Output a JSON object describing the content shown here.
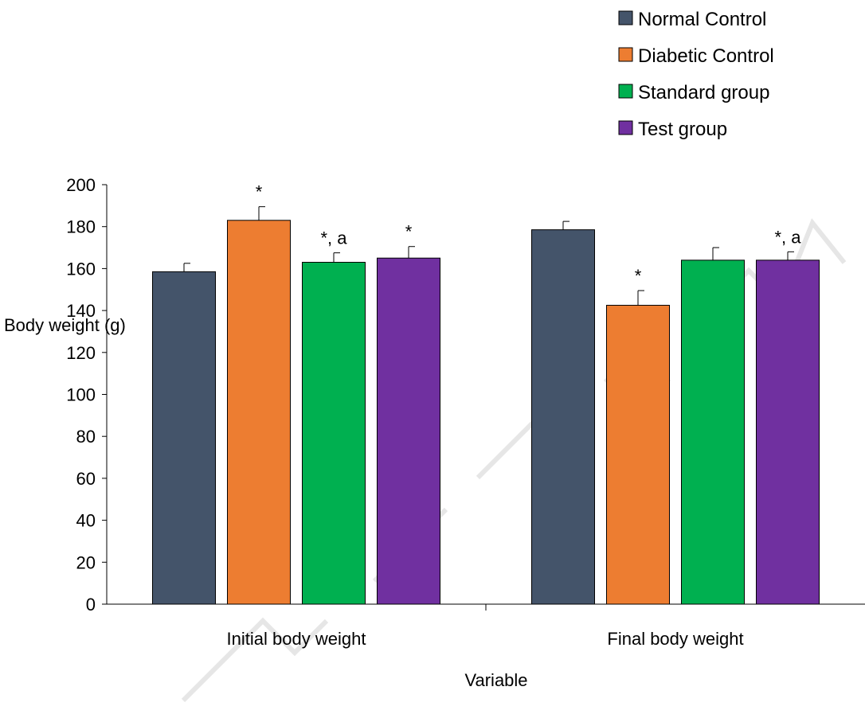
{
  "chart_data": {
    "type": "bar",
    "title": "",
    "xlabel": "Variable",
    "ylabel": "Body weight (g)",
    "ylim": [
      0,
      200
    ],
    "yticks": [
      0,
      20,
      40,
      60,
      80,
      100,
      120,
      140,
      160,
      180,
      200
    ],
    "categories": [
      "Initial body weight",
      "Final body weight"
    ],
    "legend_position": "top-right",
    "grid": false,
    "series": [
      {
        "name": "Normal Control",
        "color": "#44546a",
        "values": [
          158.5,
          178.5
        ],
        "errors": [
          4,
          4
        ],
        "annotations": [
          "",
          ""
        ]
      },
      {
        "name": "Diabetic Control",
        "color": "#ed7d31",
        "values": [
          183,
          142.5
        ],
        "errors": [
          6.5,
          7
        ],
        "annotations": [
          "*",
          "*"
        ]
      },
      {
        "name": "Standard group",
        "color": "#00b050",
        "values": [
          163,
          164
        ],
        "errors": [
          4.5,
          6
        ],
        "annotations": [
          "*, a",
          ""
        ]
      },
      {
        "name": "Test group",
        "color": "#7030a0",
        "values": [
          165,
          164
        ],
        "errors": [
          5.5,
          4
        ],
        "annotations": [
          "*",
          "*, a"
        ]
      }
    ]
  }
}
